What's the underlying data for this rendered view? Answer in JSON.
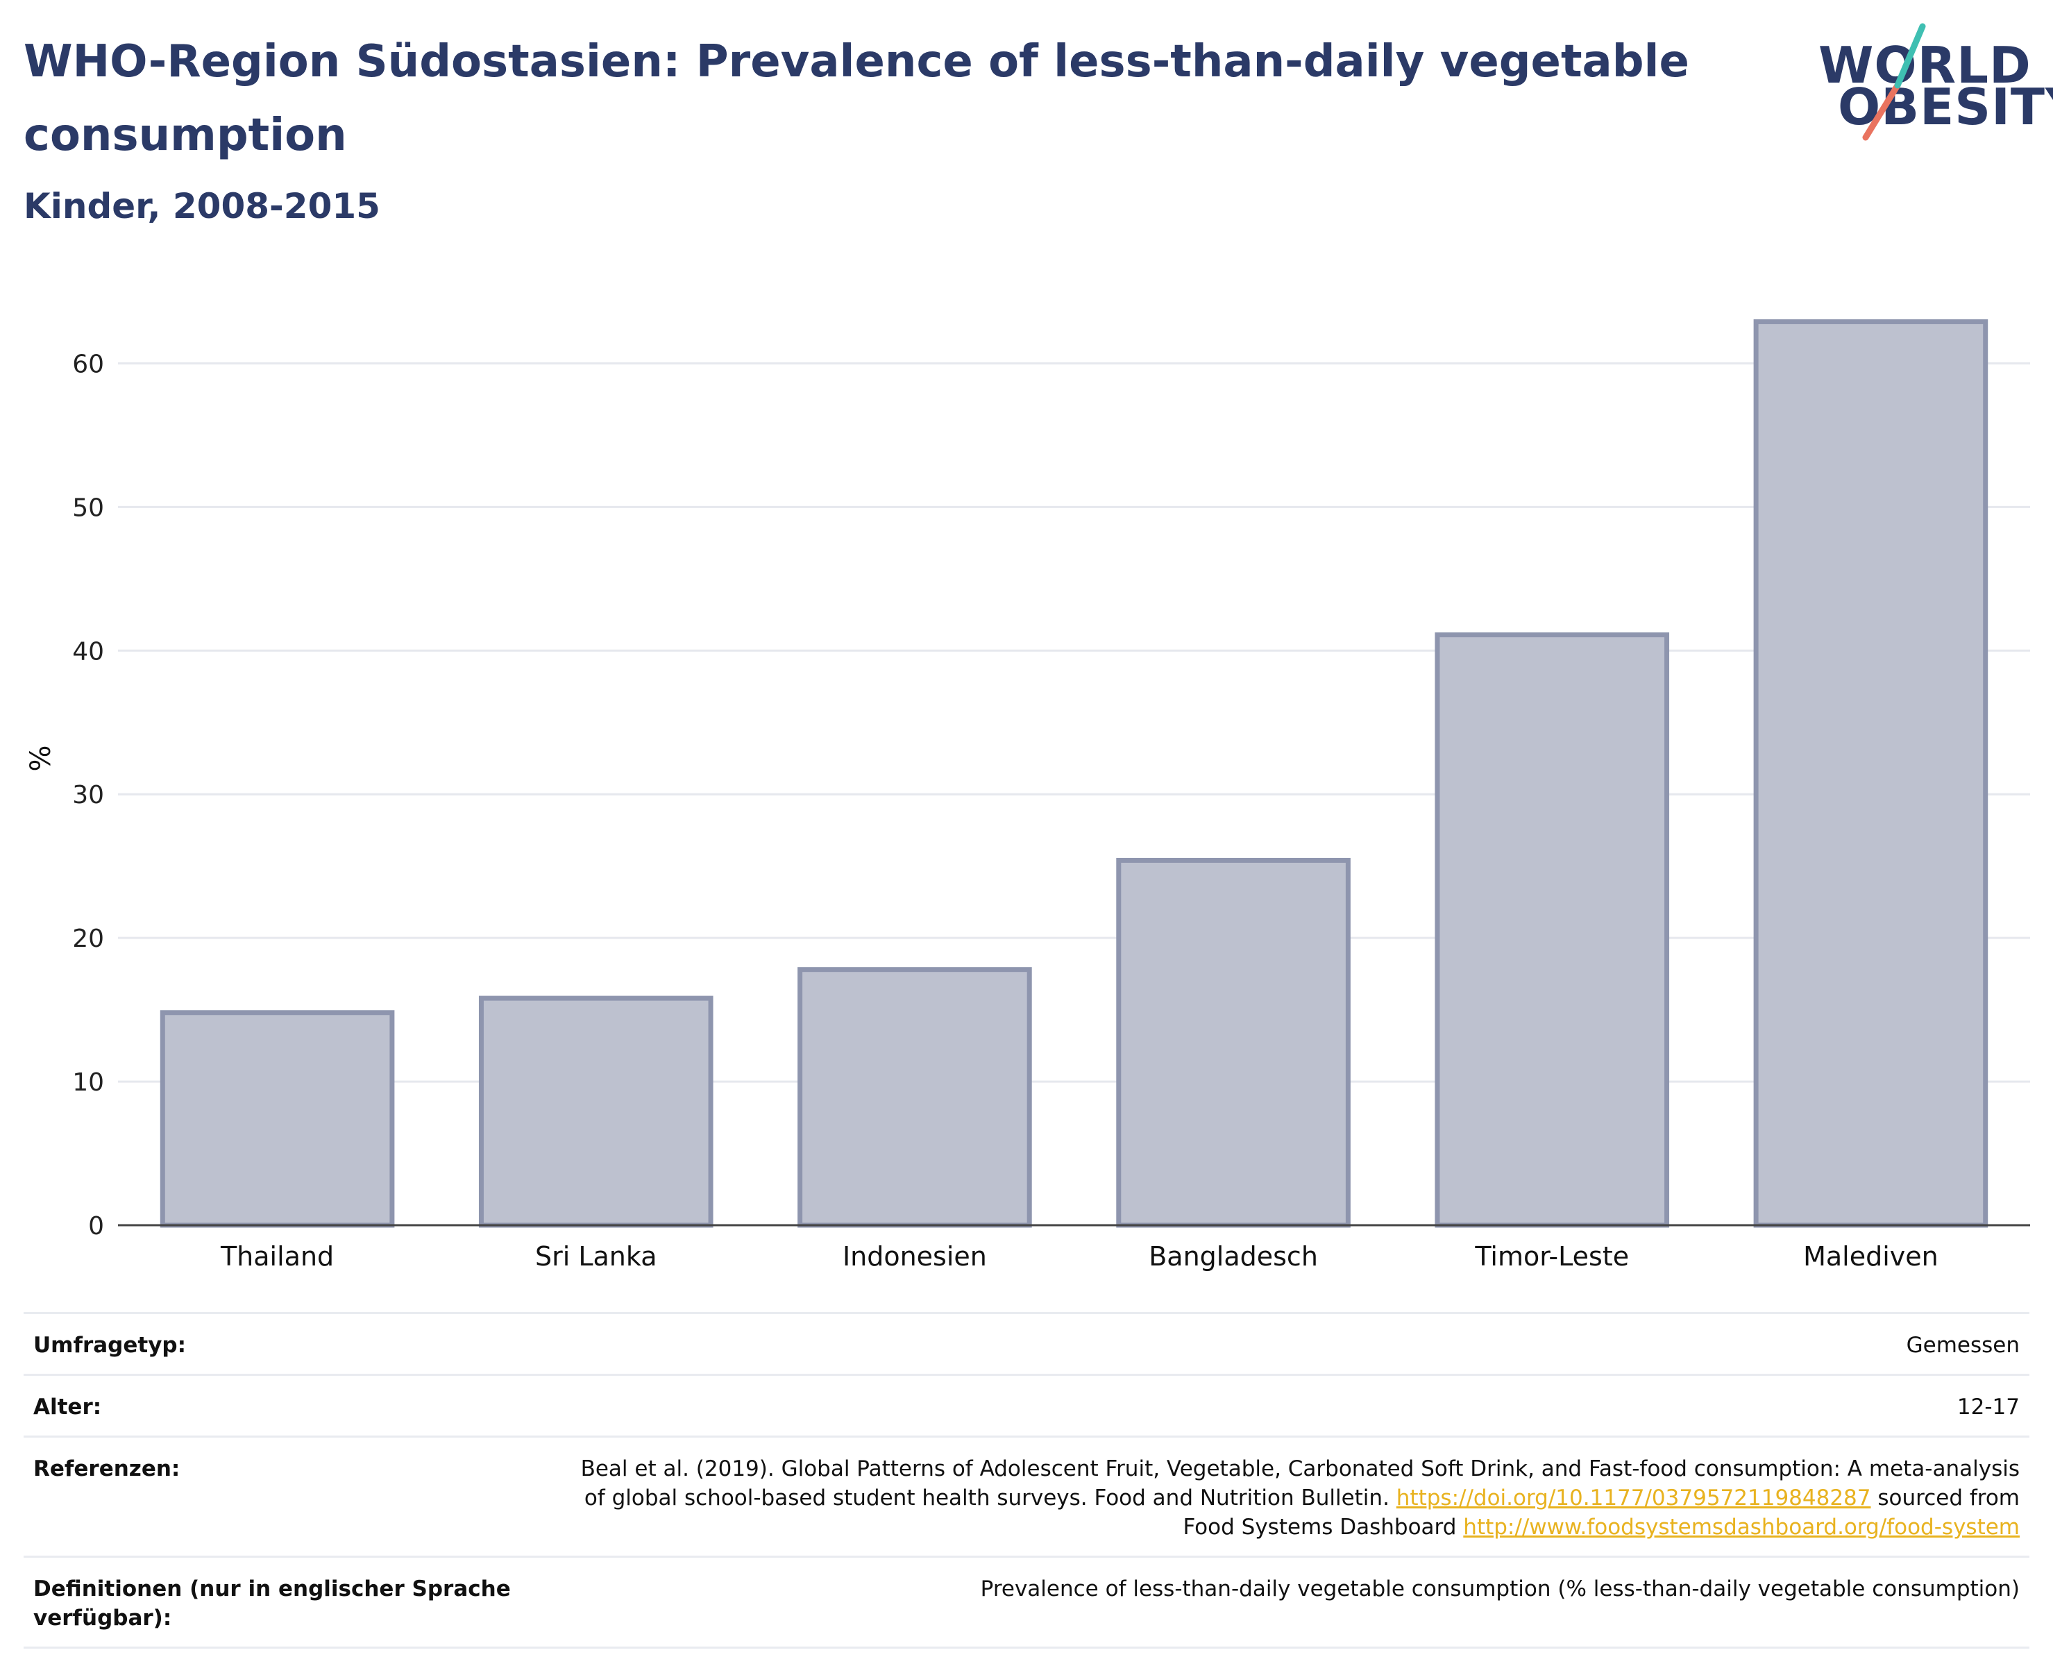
{
  "title": "WHO-Region Südostasien: Prevalence of less-than-daily vegetable consumption",
  "subtitle": "Kinder, 2008-2015",
  "logo": {
    "line1": "WORLD",
    "line2": "OBESITY"
  },
  "colors": {
    "bar_fill": "#bdc1cf",
    "bar_stroke": "#8e95ae",
    "title": "#2b3a67",
    "link": "#e8b21f",
    "grid": "#e6e8ee"
  },
  "chart_data": {
    "type": "bar",
    "categories": [
      "Thailand",
      "Sri Lanka",
      "Indonesien",
      "Bangladesch",
      "Timor-Leste",
      "Malediven"
    ],
    "values": [
      14.8,
      15.8,
      17.8,
      25.4,
      41.1,
      62.9
    ],
    "ylabel": "%",
    "xlabel": "",
    "ylim": [
      0,
      65
    ],
    "yticks": [
      0,
      10,
      20,
      30,
      40,
      50,
      60
    ],
    "grid": true
  },
  "meta": {
    "survey_label": "Umfragetyp:",
    "survey_value": "Gemessen",
    "age_label": "Alter:",
    "age_value": "12-17",
    "ref_label": "Referenzen:",
    "ref_text1": "Beal et al. (2019). Global Patterns of Adolescent Fruit, Vegetable, Carbonated Soft Drink, and Fast-food consumption: A meta-analysis",
    "ref_text2": "of global school-based student health surveys. Food and Nutrition Bulletin.",
    "ref_link1": "https://doi.org/10.1177/0379572119848287",
    "ref_text3": "sourced from",
    "ref_text4": "Food Systems Dashboard",
    "ref_link2": "http://www.foodsystemsdashboard.org/food-system",
    "def_label": "Definitionen (nur in englischer Sprache verfügbar):",
    "def_value": "Prevalence of less-than-daily vegetable consumption (% less-than-daily vegetable consumption)"
  }
}
